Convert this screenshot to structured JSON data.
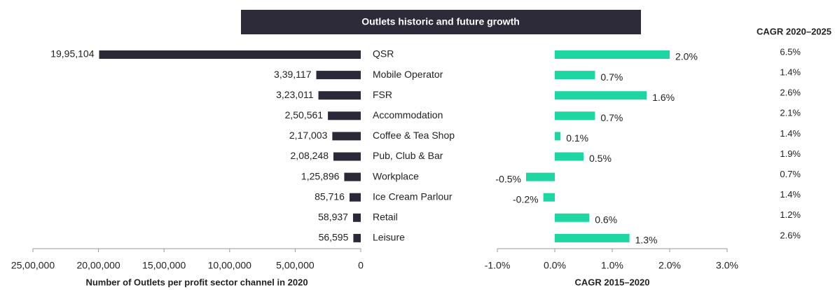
{
  "title": "Outlets historic and future growth",
  "chart_data": [
    {
      "type": "hbar",
      "x_label": "Number of Outlets per profit sector channel in 2020",
      "categories": [
        "QSR",
        "Mobile Operator",
        "FSR",
        "Accommodation",
        "Coffee & Tea Shop",
        "Pub, Club & Bar",
        "Workplace",
        "Ice Cream Parlour",
        "Retail",
        "Leisure"
      ],
      "values": [
        1995104,
        339117,
        323011,
        250561,
        217003,
        208248,
        125896,
        85716,
        58937,
        56595
      ],
      "value_labels": [
        "19,95,104",
        "3,39,117",
        "3,23,011",
        "2,50,561",
        "2,17,003",
        "2,08,248",
        "1,25,896",
        "85,716",
        "58,937",
        "56,595"
      ],
      "color": "#2b2838",
      "reversed": true,
      "xlim": [
        0,
        2500000
      ],
      "xticks": [
        {
          "value": 2500000,
          "label": "25,00,000"
        },
        {
          "value": 2000000,
          "label": "20,00,000"
        },
        {
          "value": 1500000,
          "label": "15,00,000"
        },
        {
          "value": 1000000,
          "label": "10,00,000"
        },
        {
          "value": 500000,
          "label": "5,00,000"
        },
        0
      ]
    },
    {
      "type": "hbar",
      "x_label": "CAGR 2015–2020",
      "values": [
        2.0,
        0.7,
        1.6,
        0.7,
        0.1,
        0.5,
        -0.5,
        -0.2,
        0.6,
        1.3
      ],
      "value_labels": [
        "2.0%",
        "0.7%",
        "1.6%",
        "0.7%",
        "0.1%",
        "0.5%",
        "-0.5%",
        "-0.2%",
        "0.6%",
        "1.3%"
      ],
      "color": "#1ed6a2",
      "reversed": false,
      "xlim": [
        -1,
        3
      ],
      "xticks": [
        {
          "value": -1,
          "label": "-1.0%"
        },
        {
          "value": 0,
          "label": "0.0%"
        },
        {
          "value": 1,
          "label": "1.0%"
        },
        {
          "value": 2,
          "label": "2.0%"
        },
        {
          "value": 3,
          "label": "3.0%"
        }
      ]
    },
    {
      "type": "table",
      "title": "CAGR 2020–2025",
      "values": [
        6.5,
        1.4,
        2.6,
        2.1,
        1.4,
        1.9,
        0.7,
        1.4,
        1.2,
        2.6
      ],
      "value_labels": [
        "6.5%",
        "1.4%",
        "2.6%",
        "2.1%",
        "1.4%",
        "1.9%",
        "0.7%",
        "1.4%",
        "1.2%",
        "2.6%"
      ]
    }
  ]
}
